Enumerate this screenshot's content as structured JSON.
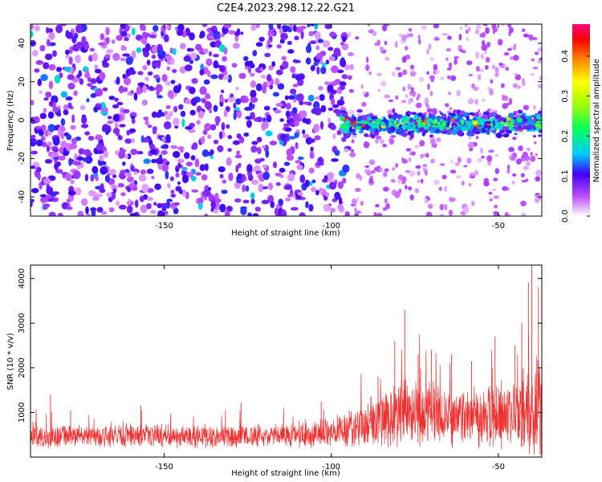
{
  "title": "C2E4.2023.298.12.22.G21",
  "chart_data": [
    {
      "type": "heatmap",
      "xlabel": "Height of straight line (km)",
      "ylabel": "Frequency (Hz)",
      "colorbar_label": "Normalized spectral amplitude",
      "xlim": [
        -190,
        -37
      ],
      "ylim": [
        -50,
        50
      ],
      "x_ticks": [
        -150,
        -100,
        -50
      ],
      "y_ticks": [
        -40,
        -20,
        0,
        20,
        40
      ],
      "colorbar_range": [
        0,
        0.48
      ],
      "colorbar_ticks": [
        0.0,
        0.1,
        0.2,
        0.3,
        0.4
      ],
      "features": [
        {
          "description": "broadband noise",
          "x_range": [
            -190,
            -95
          ],
          "y_range": [
            -50,
            50
          ],
          "level": 0.08
        },
        {
          "description": "signal band",
          "x_range": [
            -97,
            -37
          ],
          "y_center": -2,
          "y_halfwidth": 8,
          "level": 0.25
        }
      ]
    },
    {
      "type": "line",
      "xlabel": "Height of straight line (km)",
      "ylabel": "SNR (10 * v/v)",
      "xlim": [
        -190,
        -37
      ],
      "ylim": [
        0,
        4300
      ],
      "x_ticks": [
        -150,
        -100,
        -50
      ],
      "y_ticks": [
        1000,
        2000,
        3000,
        4000
      ],
      "series": [
        {
          "color": "#f03030",
          "x": [
            -190,
            -185,
            -180,
            -175,
            -170,
            -165,
            -160,
            -155,
            -150,
            -145,
            -140,
            -135,
            -130,
            -125,
            -120,
            -115,
            -110,
            -105,
            -100,
            -95,
            -90,
            -85,
            -80,
            -75,
            -70,
            -65,
            -60,
            -55,
            -50,
            -45,
            -40,
            -37
          ],
          "mean": [
            450,
            450,
            470,
            470,
            460,
            470,
            480,
            470,
            460,
            470,
            470,
            460,
            470,
            480,
            470,
            480,
            500,
            520,
            560,
            620,
            720,
            850,
            950,
            950,
            930,
            920,
            920,
            900,
            880,
            900,
            1000,
            1200
          ],
          "amp": [
            230,
            230,
            240,
            240,
            230,
            240,
            240,
            240,
            230,
            240,
            240,
            230,
            240,
            240,
            240,
            250,
            260,
            280,
            320,
            380,
            480,
            600,
            700,
            680,
            660,
            640,
            640,
            620,
            640,
            680,
            900,
            1200
          ],
          "spikes": [
            [
              -184,
              1400
            ],
            [
              -178,
              1050
            ],
            [
              -157,
              1150
            ],
            [
              -127,
              1220
            ],
            [
              -103,
              1250
            ],
            [
              -86,
              1800
            ],
            [
              -81,
              2600
            ],
            [
              -78,
              3300
            ],
            [
              -74,
              2300
            ],
            [
              -70,
              2400
            ],
            [
              -64,
              2300
            ],
            [
              -58,
              2150
            ],
            [
              -51,
              2700
            ],
            [
              -45,
              2500
            ],
            [
              -43,
              3000
            ],
            [
              -41,
              3900
            ],
            [
              -40,
              4300
            ],
            [
              -38,
              3800
            ]
          ]
        }
      ]
    }
  ]
}
